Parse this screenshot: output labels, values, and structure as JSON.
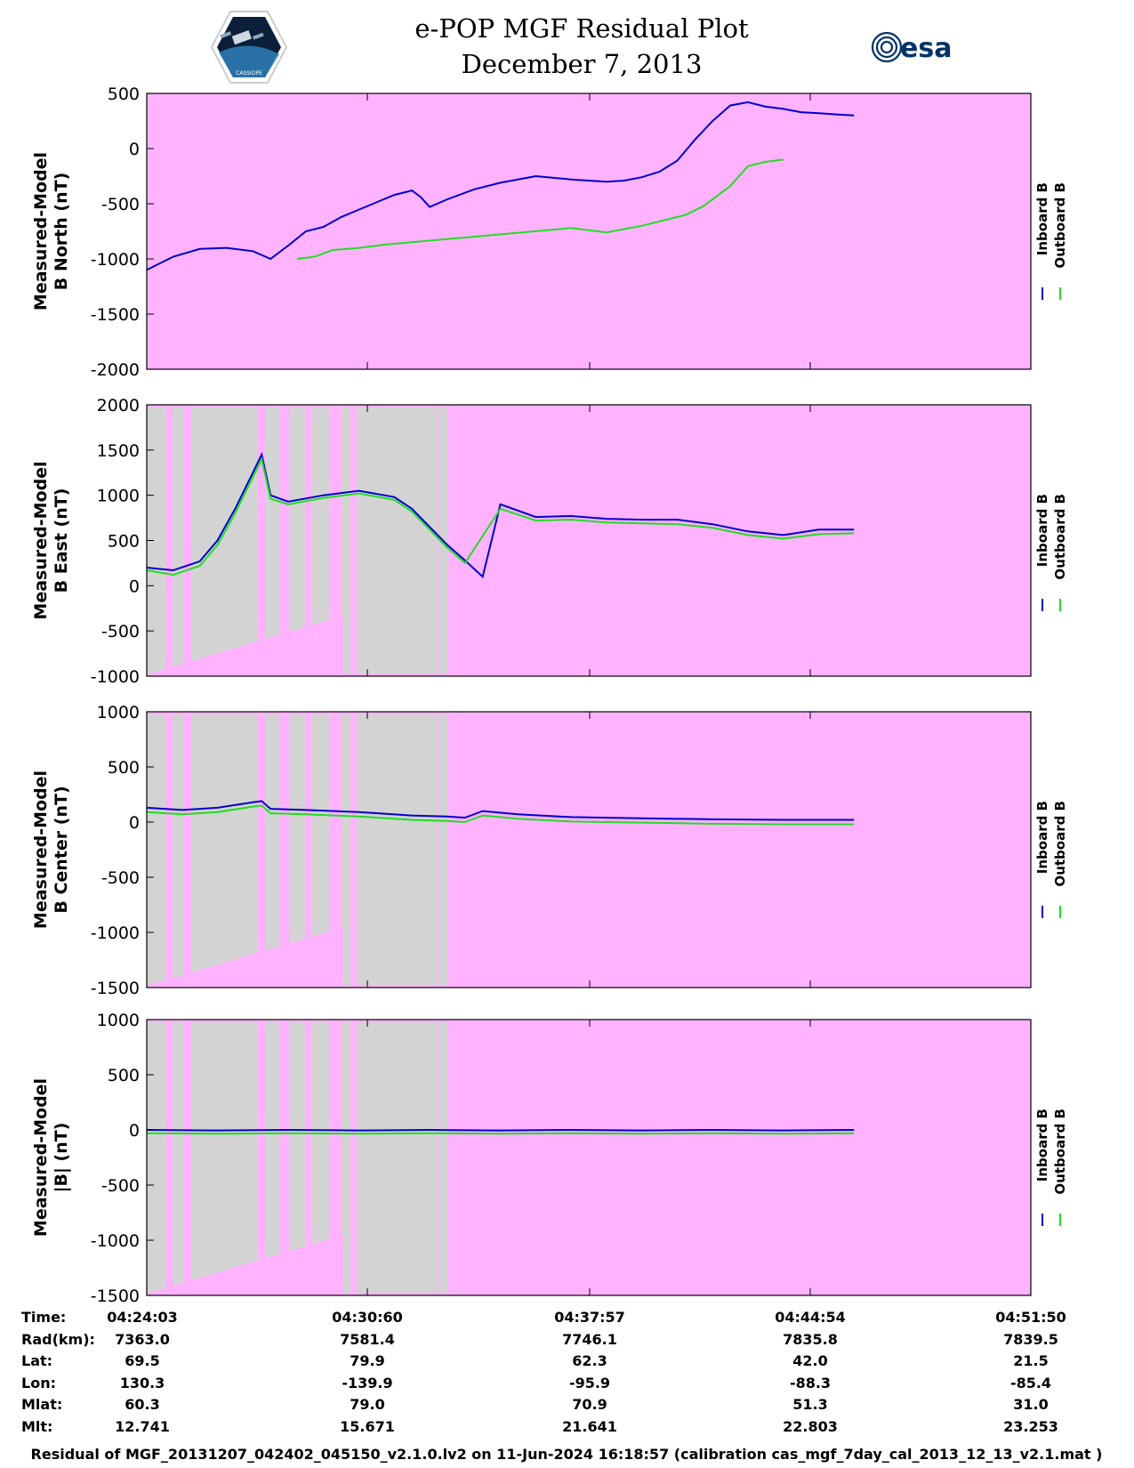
{
  "header": {
    "title_line1": "e-POP MGF Residual Plot",
    "title_line2": "December 7, 2013",
    "logo_left_text": "CASSIOPE",
    "logo_right_text": "esa"
  },
  "colors": {
    "background": "#FFB3FF",
    "gap_shading": "#D3D3D3",
    "inboard": "#0000CC",
    "outboard": "#22DD22",
    "frame": "#000000"
  },
  "chart_data": [
    {
      "type": "line",
      "ylabel_line1": "Measured-Model",
      "ylabel_line2": "B North (nT)",
      "ylim": [
        -2000,
        500
      ],
      "yticks": [
        500,
        0,
        -500,
        -1000,
        -1500,
        -2000
      ],
      "xlim": [
        0,
        100
      ],
      "gray_shading": false,
      "legend": [
        "Inboard B",
        "Outboard B"
      ],
      "series": [
        {
          "name": "Inboard B",
          "x": [
            0,
            3,
            6,
            9,
            12,
            14,
            16,
            18,
            20,
            22,
            25,
            28,
            30,
            31,
            32,
            34,
            37,
            40,
            44,
            48,
            52,
            54,
            56,
            58,
            60,
            62,
            64,
            66,
            68,
            70,
            72,
            74,
            76,
            78,
            80
          ],
          "y": [
            -1100,
            -980,
            -910,
            -900,
            -930,
            -1000,
            -880,
            -750,
            -710,
            -620,
            -520,
            -420,
            -380,
            -440,
            -530,
            -460,
            -370,
            -310,
            -250,
            -280,
            -300,
            -290,
            -260,
            -210,
            -110,
            80,
            250,
            390,
            420,
            380,
            360,
            330,
            320,
            310,
            300
          ]
        },
        {
          "name": "Outboard B",
          "x": [
            17,
            19,
            21,
            24,
            27,
            48,
            52,
            56,
            59,
            61,
            63,
            66,
            68,
            70,
            72
          ],
          "y": [
            -1000,
            -980,
            -920,
            -900,
            -870,
            -720,
            -760,
            -700,
            -640,
            -600,
            -520,
            -340,
            -160,
            -120,
            -100
          ]
        }
      ]
    },
    {
      "type": "line",
      "ylabel_line1": "Measured-Model",
      "ylabel_line2": "B East (nT)",
      "ylim": [
        -1000,
        2000
      ],
      "yticks": [
        2000,
        1500,
        1000,
        500,
        0,
        -500,
        -1000
      ],
      "xlim": [
        0,
        100
      ],
      "gray_shading": true,
      "legend": [
        "Inboard B",
        "Outboard B"
      ],
      "series": [
        {
          "name": "Inboard B",
          "x": [
            0,
            3,
            6,
            8,
            10,
            12,
            13,
            14,
            16,
            20,
            24,
            28,
            30,
            32,
            34,
            36,
            38,
            40,
            44,
            48,
            52,
            56,
            60,
            64,
            68,
            72,
            76,
            80
          ],
          "y": [
            200,
            170,
            270,
            500,
            850,
            1250,
            1450,
            1000,
            930,
            1000,
            1050,
            980,
            850,
            650,
            450,
            280,
            100,
            900,
            760,
            770,
            740,
            730,
            730,
            680,
            600,
            560,
            620,
            620
          ]
        },
        {
          "name": "Outboard B",
          "x": [
            0,
            3,
            6,
            8,
            10,
            12,
            13,
            14,
            16,
            20,
            24,
            28,
            30,
            32,
            34,
            36,
            40,
            44,
            48,
            52,
            56,
            60,
            64,
            68,
            72,
            76,
            80
          ],
          "y": [
            170,
            120,
            220,
            450,
            800,
            1200,
            1400,
            960,
            900,
            970,
            1020,
            950,
            820,
            620,
            420,
            250,
            850,
            720,
            730,
            700,
            690,
            680,
            640,
            560,
            520,
            570,
            580
          ]
        }
      ]
    },
    {
      "type": "line",
      "ylabel_line1": "Measured-Model",
      "ylabel_line2": "B Center (nT)",
      "ylim": [
        -1500,
        1000
      ],
      "yticks": [
        1000,
        500,
        0,
        -500,
        -1000,
        -1500
      ],
      "xlim": [
        0,
        100
      ],
      "gray_shading": true,
      "legend": [
        "Inboard B",
        "Outboard B"
      ],
      "series": [
        {
          "name": "Inboard B",
          "x": [
            0,
            4,
            8,
            12,
            13,
            14,
            18,
            24,
            30,
            34,
            36,
            38,
            42,
            48,
            56,
            64,
            72,
            80
          ],
          "y": [
            130,
            110,
            130,
            180,
            190,
            120,
            110,
            90,
            60,
            50,
            40,
            100,
            70,
            45,
            35,
            25,
            20,
            20
          ]
        },
        {
          "name": "Outboard B",
          "x": [
            0,
            4,
            8,
            12,
            13,
            14,
            18,
            24,
            30,
            34,
            36,
            38,
            42,
            48,
            56,
            64,
            72,
            80
          ],
          "y": [
            90,
            70,
            90,
            140,
            150,
            80,
            70,
            50,
            20,
            10,
            0,
            60,
            30,
            5,
            -5,
            -15,
            -20,
            -20
          ]
        }
      ]
    },
    {
      "type": "line",
      "ylabel_line1": "Measured-Model",
      "ylabel_line2": "|B| (nT)",
      "ylim": [
        -1500,
        1000
      ],
      "yticks": [
        1000,
        500,
        0,
        -500,
        -1000,
        -1500
      ],
      "xlim": [
        0,
        100
      ],
      "gray_shading": true,
      "legend": [
        "Inboard B",
        "Outboard B"
      ],
      "series": [
        {
          "name": "Inboard B",
          "x": [
            0,
            8,
            16,
            24,
            32,
            40,
            48,
            56,
            64,
            72,
            80
          ],
          "y": [
            0,
            -5,
            0,
            -5,
            0,
            -5,
            0,
            -5,
            0,
            -5,
            0
          ]
        },
        {
          "name": "Outboard B",
          "x": [
            0,
            8,
            16,
            24,
            32,
            40,
            48,
            56,
            64,
            72,
            80
          ],
          "y": [
            -30,
            -35,
            -30,
            -35,
            -30,
            -35,
            -30,
            -35,
            -30,
            -35,
            -30
          ]
        }
      ]
    }
  ],
  "ephemeris": {
    "row_labels": [
      "Time:",
      "Rad(km):",
      "Lat:",
      "Lon:",
      "Mlat:",
      "Mlt:"
    ],
    "columns": [
      [
        "04:24:03",
        "7363.0",
        "69.5",
        "130.3",
        "60.3",
        "12.741"
      ],
      [
        "04:30:60",
        "7581.4",
        "79.9",
        "-139.9",
        "79.0",
        "15.671"
      ],
      [
        "04:37:57",
        "7746.1",
        "62.3",
        "-95.9",
        "70.9",
        "21.641"
      ],
      [
        "04:44:54",
        "7835.8",
        "42.0",
        "-88.3",
        "51.3",
        "22.803"
      ],
      [
        "04:51:50",
        "7839.5",
        "21.5",
        "-85.4",
        "31.0",
        "23.253"
      ]
    ]
  },
  "footer": "Residual of MGF_20131207_042402_045150_v2.1.0.lv2 on 11-Jun-2024 16:18:57 (calibration cas_mgf_7day_cal_2013_12_13_v2.1.mat )"
}
